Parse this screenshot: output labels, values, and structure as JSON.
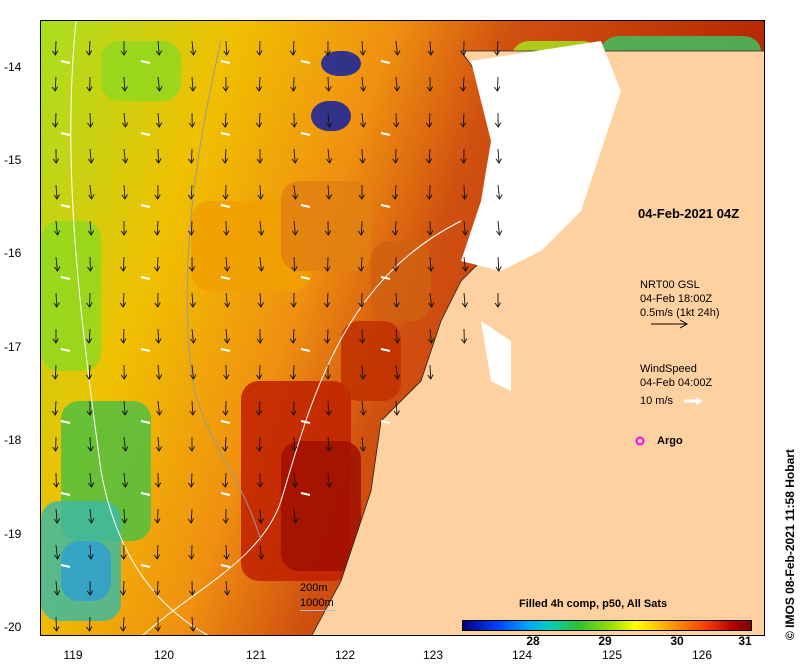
{
  "title": "04-Feb-2021 04Z",
  "credit": "© IMOS 08-Feb-2021 11:58 Hobart",
  "y_ticks": [
    "-14",
    "-15",
    "-16",
    "-17",
    "-18",
    "-19",
    "-20"
  ],
  "x_ticks": [
    "119",
    "120",
    "121",
    "122",
    "123",
    "124",
    "125",
    "126"
  ],
  "currents_legend": {
    "line1": "NRT00 GSL",
    "line2": "04-Feb 18:00Z",
    "line3": "0.5m/s (1kt 24h)"
  },
  "wind_legend": {
    "line1": "WindSpeed",
    "line2": "04-Feb 04:00Z",
    "line3": "10 m/s"
  },
  "argo_label": "Argo",
  "bathy_labels": {
    "a": "200m",
    "b": "1000m"
  },
  "colorbar": {
    "title": "Filled 4h comp, p50, All Sats",
    "ticks": [
      "28",
      "29",
      "30",
      "31"
    ]
  },
  "colors": {
    "land": "#ffd0a0",
    "argo": "#ff00ff",
    "hot": "#b00000",
    "warm": "#ffa000",
    "cool": "#a0e000"
  }
}
